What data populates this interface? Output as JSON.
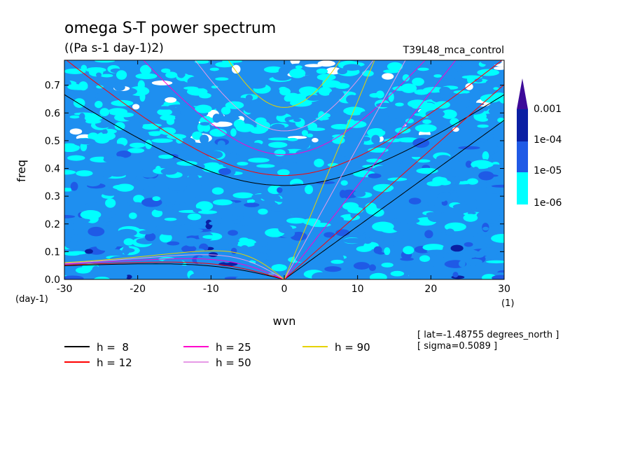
{
  "chart_data": {
    "type": "heatmap",
    "title": "omega S-T power spectrum",
    "subtitle": "((Pa s-1 day-1)2)",
    "run_label": "T39L48_mca_control",
    "xlabel": "wvn",
    "ylabel": "freq",
    "x_unit": "(1)",
    "y_unit": "(day-1)",
    "xlim": [
      -30,
      30
    ],
    "ylim": [
      0,
      0.79
    ],
    "xticks": [
      -30,
      -20,
      -10,
      0,
      10,
      20,
      30
    ],
    "yticks": [
      0.0,
      0.1,
      0.2,
      0.3,
      0.4,
      0.5,
      0.6,
      0.7
    ],
    "xtick_labels": [
      "-30",
      "-20",
      "-10",
      "0",
      "10",
      "20",
      "30"
    ],
    "ytick_labels": [
      "0.0",
      "0.1",
      "0.2",
      "0.3",
      "0.4",
      "0.5",
      "0.6",
      "0.7"
    ],
    "colorbar": {
      "levels": [
        "0.001",
        "1e-04",
        "1e-05",
        "1e-06"
      ],
      "colors": [
        "#3d0a99",
        "#0a1fa3",
        "#1f5ae6",
        "#1e8ff0",
        "#00ffff",
        "#ffffff"
      ]
    },
    "dispersion_curves": [
      {
        "label": "h =  8",
        "color": "#000000"
      },
      {
        "label": "h = 12",
        "color": "#ff0000"
      },
      {
        "label": "h = 25",
        "color": "#ff00cc"
      },
      {
        "label": "h = 50",
        "color": "#e699e6"
      },
      {
        "label": "h = 90",
        "color": "#e6d200"
      }
    ],
    "notes": [
      "[ lat=-1.48755 degrees_north ]",
      "[ sigma=0.5089 ]"
    ]
  }
}
